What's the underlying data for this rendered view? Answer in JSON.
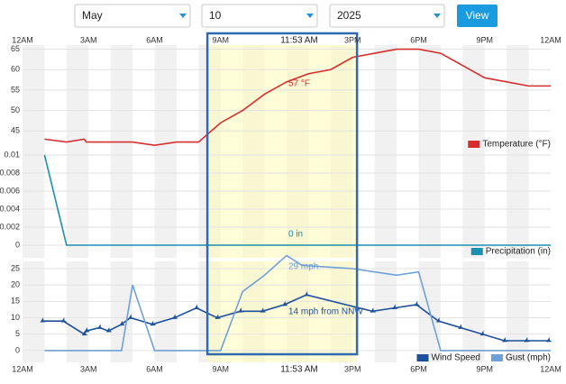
{
  "controls": {
    "month": "May",
    "day": "10",
    "year": "2025",
    "button": "View"
  },
  "selection": [
    8.4,
    15.2
  ],
  "chart_data": [
    {
      "type": "line",
      "xlim": [
        0,
        24
      ],
      "xticks": [
        {
          "value": 0,
          "label": "12AM"
        },
        {
          "value": 3,
          "label": "3AM"
        },
        {
          "value": 6,
          "label": "6AM"
        },
        {
          "value": 9,
          "label": "9AM"
        },
        {
          "value": 15,
          "label": "3PM"
        },
        {
          "value": 18,
          "label": "6PM"
        },
        {
          "value": 21,
          "label": "9PM"
        },
        {
          "value": 24,
          "label": "12AM"
        }
      ],
      "cursor_label": "11:53 AM",
      "ylim": [
        40,
        66
      ],
      "yticks": [
        45,
        50,
        55,
        60,
        65
      ],
      "grid": true,
      "annotation": "57 °F",
      "series": [
        {
          "name": "Temperature (°F)",
          "color": "#d62e2e",
          "x": [
            1,
            2,
            2.8,
            2.9,
            4,
            5,
            6,
            7,
            8,
            9,
            10,
            11,
            12,
            13,
            14,
            15,
            16,
            17,
            18,
            19,
            20,
            21,
            22,
            23,
            24
          ],
          "values": [
            43,
            42.3,
            43,
            42.3,
            42.3,
            42.3,
            41.5,
            42.3,
            42.3,
            47,
            50,
            54,
            57,
            59,
            60,
            63,
            64,
            65,
            65,
            64,
            61,
            58,
            57,
            56,
            56
          ]
        }
      ]
    },
    {
      "type": "line",
      "xlim": [
        0,
        24
      ],
      "ylim": [
        -0.0014,
        0.0104
      ],
      "yticks": [
        0,
        0.002,
        0.004,
        0.006,
        0.008,
        0.01
      ],
      "grid": true,
      "annotation": "0 in",
      "series": [
        {
          "name": "Precipitation (in)",
          "color": "#1a8fb0",
          "x": [
            1,
            2,
            24
          ],
          "values": [
            0.01,
            0,
            0
          ]
        }
      ]
    },
    {
      "type": "line",
      "xlim": [
        0,
        24
      ],
      "xticks": [
        {
          "value": 0,
          "label": "12AM"
        },
        {
          "value": 3,
          "label": "3AM"
        },
        {
          "value": 6,
          "label": "6AM"
        },
        {
          "value": 9,
          "label": "9AM"
        },
        {
          "value": 15,
          "label": "3PM"
        },
        {
          "value": 18,
          "label": "6PM"
        },
        {
          "value": 21,
          "label": "9PM"
        },
        {
          "value": 24,
          "label": "12AM"
        }
      ],
      "cursor_label": "11:53 AM",
      "ylim": [
        -3.6,
        27.2
      ],
      "yticks": [
        0,
        5,
        10,
        15,
        20,
        25
      ],
      "grid": true,
      "annotations": [
        "29 mph",
        "14 mph from NNW"
      ],
      "series": [
        {
          "name": "Wind Speed",
          "color": "#1c4f9c",
          "markers": true,
          "x": [
            0.9,
            1.85,
            2.8,
            2.9,
            3.5,
            3.9,
            4.5,
            4.9,
            5.9,
            6.9,
            7.9,
            8.85,
            9.9,
            10.9,
            11.9,
            12.9,
            15.9,
            16.9,
            17.9,
            18.9,
            19.9,
            20.9,
            21.9,
            22.9,
            23.9
          ],
          "values": [
            9,
            9,
            5,
            6,
            7,
            6,
            8,
            10,
            8,
            10,
            13,
            10,
            12,
            12,
            14,
            17,
            12,
            13,
            14,
            9,
            7,
            5,
            3,
            3,
            3
          ]
        },
        {
          "name": "Gust (mph)",
          "color": "#6fa0d8",
          "x": [
            1,
            4.5,
            5,
            6,
            9,
            10,
            11,
            12,
            12.7,
            15,
            17,
            18,
            19,
            24
          ],
          "values": [
            0,
            0,
            20,
            0,
            0,
            18,
            23,
            29,
            26,
            25,
            23,
            24,
            0,
            0
          ]
        }
      ]
    }
  ]
}
